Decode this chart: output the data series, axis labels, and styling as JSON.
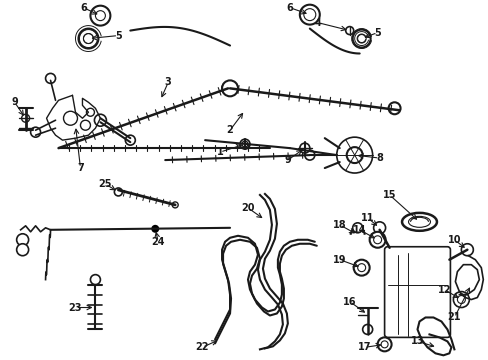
{
  "background_color": "#ffffff",
  "line_color": "#1a1a1a",
  "figsize": [
    4.89,
    3.6
  ],
  "dpi": 100,
  "border_color": "#cccccc"
}
